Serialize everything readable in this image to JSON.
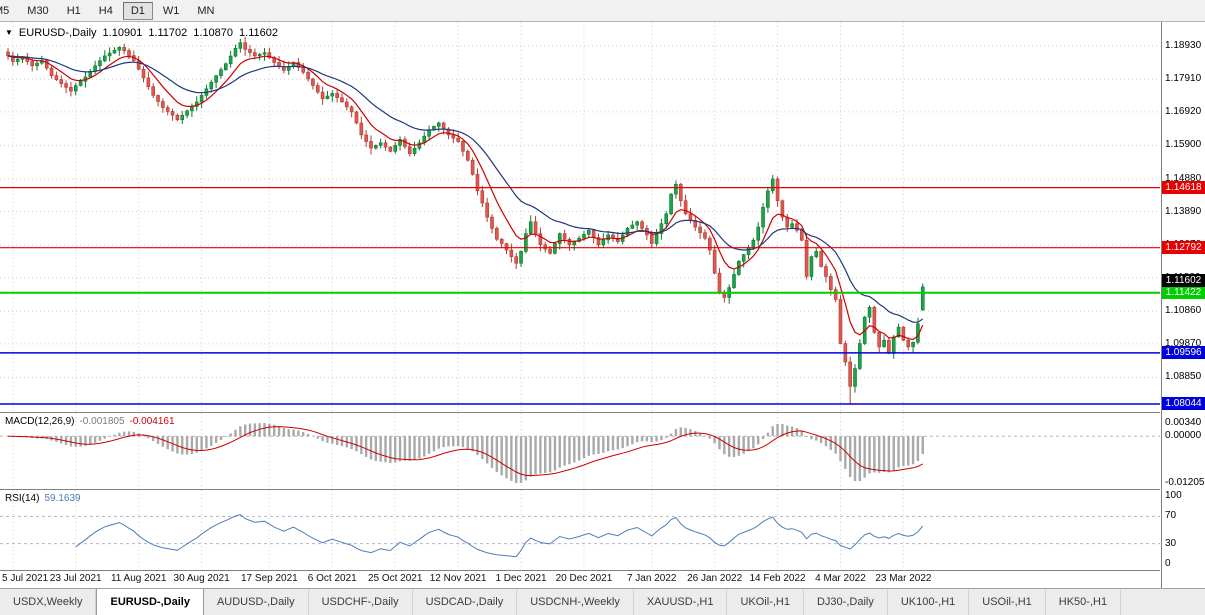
{
  "toolbar": {
    "timeframes": [
      "M5",
      "M30",
      "H1",
      "H4",
      "D1",
      "W1",
      "MN"
    ],
    "active_timeframe": "D1"
  },
  "icons": {
    "symbol_dropdown": "▼"
  },
  "header": {
    "symbol_label": "EURUSD-,Daily",
    "open": "1.10901",
    "high": "1.11702",
    "low": "1.10870",
    "close": "1.11602"
  },
  "price_axis": {
    "labels": [
      "1.18930",
      "1.17910",
      "1.16920",
      "1.15900",
      "1.14880",
      "1.13890",
      "1.12870",
      "1.11880",
      "1.10860",
      "1.09870",
      "1.08850"
    ]
  },
  "levels": [
    {
      "label": "1.14618",
      "price": 1.14618,
      "color": "#e60000",
      "width": 1.2
    },
    {
      "label": "1.12792",
      "price": 1.12792,
      "color": "#e60000",
      "width": 1.2
    },
    {
      "label": "1.11422",
      "price": 1.11422,
      "color": "#00ce00",
      "width": 2
    },
    {
      "label": "1.09596",
      "price": 1.09596,
      "color": "#0000dd",
      "width": 1.5
    },
    {
      "label": "1.08044",
      "price": 1.08044,
      "color": "#0000dd",
      "width": 1.5
    }
  ],
  "current_price": {
    "label": "1.11602",
    "price": 1.11602,
    "bg": "#000000"
  },
  "macd": {
    "name": "MACD(12,26,9)",
    "value_main": "-0.001805",
    "value_signal": "-0.004161",
    "axis_labels": [
      "0.00340",
      "0.00000",
      "-0.01205"
    ],
    "range_max": 0.0034,
    "range_min": -0.01205
  },
  "rsi": {
    "name": "RSI(14)",
    "value": "59.1639",
    "axis_labels": [
      "100",
      "70",
      "30",
      "0"
    ],
    "upper_level": 70,
    "lower_level": 30
  },
  "date_axis": [
    "5 Jul 2021",
    "23 Jul 2021",
    "11 Aug 2021",
    "30 Aug 2021",
    "17 Sep 2021",
    "6 Oct 2021",
    "25 Oct 2021",
    "12 Nov 2021",
    "1 Dec 2021",
    "20 Dec 2021",
    "7 Jan 2022",
    "26 Jan 2022",
    "14 Feb 2022",
    "4 Mar 2022",
    "23 Mar 2022"
  ],
  "tabs": {
    "items": [
      "USDX,Weekly",
      "EURUSD-,Daily",
      "AUDUSD-,Daily",
      "USDCHF-,Daily",
      "USDCAD-,Daily",
      "USDCNH-,Weekly",
      "XAUUSD-,H1",
      "UKOil-,H1",
      "DJ30-,Daily",
      "UK100-,H1",
      "USOil-,H1",
      "HK50-,H1"
    ],
    "active": "EURUSD-,Daily"
  },
  "chart_data": {
    "type": "candlestick",
    "title": "EURUSD-,Daily",
    "price_range": [
      1.078,
      1.1965
    ],
    "bars": 190,
    "tick_bars": [
      1,
      14,
      27,
      40,
      54,
      67,
      80,
      93,
      106,
      119,
      133,
      146,
      159,
      172,
      185
    ],
    "last_candle": {
      "open": 1.10901,
      "high": 1.11702,
      "low": 1.1087,
      "close": 1.11602
    },
    "swing_low": {
      "bar": 174,
      "price": 1.0806
    },
    "swing_high": {
      "bar": 48,
      "price": 1.1909
    },
    "close_anchors": [
      [
        0,
        1.1862
      ],
      [
        1,
        1.1845
      ],
      [
        3,
        1.1858
      ],
      [
        5,
        1.1832
      ],
      [
        7,
        1.1848
      ],
      [
        9,
        1.1802
      ],
      [
        11,
        1.1778
      ],
      [
        13,
        1.1755
      ],
      [
        14,
        1.1772
      ],
      [
        16,
        1.1798
      ],
      [
        18,
        1.1832
      ],
      [
        20,
        1.1862
      ],
      [
        23,
        1.1888
      ],
      [
        24,
        1.1878
      ],
      [
        26,
        1.1848
      ],
      [
        28,
        1.1795
      ],
      [
        30,
        1.1742
      ],
      [
        32,
        1.1705
      ],
      [
        34,
        1.1682
      ],
      [
        35,
        1.1668
      ],
      [
        37,
        1.1695
      ],
      [
        39,
        1.1722
      ],
      [
        41,
        1.1762
      ],
      [
        43,
        1.1802
      ],
      [
        45,
        1.1838
      ],
      [
        47,
        1.1885
      ],
      [
        48,
        1.1902
      ],
      [
        49,
        1.1882
      ],
      [
        51,
        1.1862
      ],
      [
        53,
        1.1872
      ],
      [
        55,
        1.1842
      ],
      [
        57,
        1.1818
      ],
      [
        59,
        1.1842
      ],
      [
        61,
        1.1812
      ],
      [
        63,
        1.1772
      ],
      [
        65,
        1.1732
      ],
      [
        67,
        1.1748
      ],
      [
        69,
        1.1722
      ],
      [
        71,
        1.1692
      ],
      [
        72,
        1.1658
      ],
      [
        73,
        1.1622
      ],
      [
        74,
        1.1602
      ],
      [
        75,
        1.1582
      ],
      [
        77,
        1.1598
      ],
      [
        79,
        1.1572
      ],
      [
        81,
        1.1608
      ],
      [
        83,
        1.1565
      ],
      [
        85,
        1.1598
      ],
      [
        87,
        1.1638
      ],
      [
        89,
        1.1658
      ],
      [
        91,
        1.1622
      ],
      [
        93,
        1.1602
      ],
      [
        94,
        1.1572
      ],
      [
        95,
        1.1545
      ],
      [
        96,
        1.1502
      ],
      [
        97,
        1.1452
      ],
      [
        98,
        1.1415
      ],
      [
        99,
        1.1372
      ],
      [
        100,
        1.1338
      ],
      [
        101,
        1.1305
      ],
      [
        102,
        1.1292
      ],
      [
        103,
        1.1272
      ],
      [
        104,
        1.1252
      ],
      [
        105,
        1.1232
      ],
      [
        106,
        1.1268
      ],
      [
        107,
        1.1322
      ],
      [
        108,
        1.1358
      ],
      [
        109,
        1.1322
      ],
      [
        110,
        1.1288
      ],
      [
        112,
        1.1262
      ],
      [
        114,
        1.1322
      ],
      [
        116,
        1.1288
      ],
      [
        118,
        1.1308
      ],
      [
        120,
        1.1332
      ],
      [
        122,
        1.1288
      ],
      [
        124,
        1.1318
      ],
      [
        126,
        1.1298
      ],
      [
        128,
        1.1338
      ],
      [
        130,
        1.1358
      ],
      [
        132,
        1.1318
      ],
      [
        133,
        1.1292
      ],
      [
        134,
        1.1322
      ],
      [
        135,
        1.1352
      ],
      [
        136,
        1.1382
      ],
      [
        137,
        1.1442
      ],
      [
        138,
        1.1472
      ],
      [
        139,
        1.1422
      ],
      [
        140,
        1.1382
      ],
      [
        142,
        1.1342
      ],
      [
        144,
        1.1308
      ],
      [
        145,
        1.1272
      ],
      [
        146,
        1.1202
      ],
      [
        147,
        1.1142
      ],
      [
        148,
        1.1128
      ],
      [
        149,
        1.1158
      ],
      [
        150,
        1.1198
      ],
      [
        151,
        1.1238
      ],
      [
        152,
        1.1258
      ],
      [
        154,
        1.1302
      ],
      [
        155,
        1.1342
      ],
      [
        156,
        1.1402
      ],
      [
        157,
        1.1452
      ],
      [
        158,
        1.1488
      ],
      [
        159,
        1.1422
      ],
      [
        160,
        1.1372
      ],
      [
        161,
        1.1342
      ],
      [
        162,
        1.1352
      ],
      [
        163,
        1.1332
      ],
      [
        164,
        1.1302
      ],
      [
        165,
        1.1192
      ],
      [
        166,
        1.1252
      ],
      [
        167,
        1.1268
      ],
      [
        168,
        1.1222
      ],
      [
        169,
        1.1192
      ],
      [
        170,
        1.1152
      ],
      [
        171,
        1.1122
      ],
      [
        172,
        1.0988
      ],
      [
        173,
        1.0932
      ],
      [
        174,
        1.0858
      ],
      [
        175,
        1.0912
      ],
      [
        176,
        1.0988
      ],
      [
        177,
        1.1068
      ],
      [
        178,
        1.1098
      ],
      [
        179,
        1.1022
      ],
      [
        180,
        1.0978
      ],
      [
        181,
        1.0998
      ],
      [
        182,
        1.0958
      ],
      [
        183,
        1.1008
      ],
      [
        184,
        1.1038
      ],
      [
        185,
        1.0998
      ],
      [
        186,
        1.0978
      ],
      [
        187,
        1.0992
      ],
      [
        188,
        1.1048
      ],
      [
        189,
        1.11602
      ]
    ],
    "overlays": [
      {
        "name": "ma-fast",
        "period": 8,
        "color": "#cc0000"
      },
      {
        "name": "ma-slow",
        "period": 21,
        "color": "#20387f"
      }
    ],
    "indicators": [
      "MACD(12,26,9)",
      "RSI(14)"
    ]
  },
  "colors": {
    "up": "#1fa24a",
    "up_border": "#0b7a30",
    "down": "#df584e",
    "down_border": "#b23b33",
    "grid": "#cfcfcf",
    "macd_hist": "#a9a9a9",
    "macd_signal": "#cc0000",
    "rsi_line": "#4a7ebb",
    "panel_border": "#808080"
  }
}
